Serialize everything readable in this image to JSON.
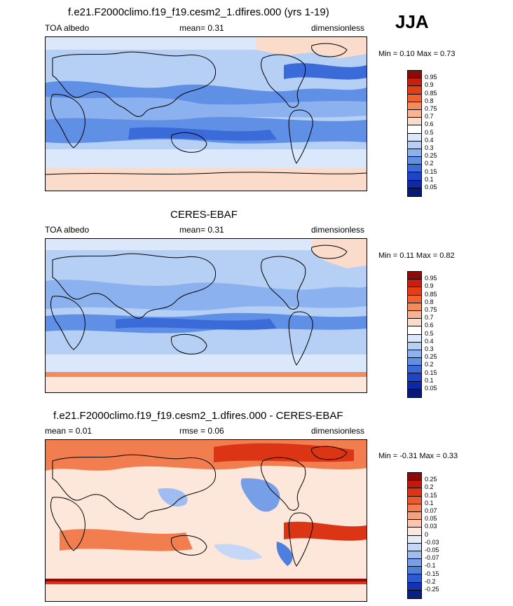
{
  "season": "JJA",
  "panels": [
    {
      "title": "f.e21.F2000climo.f19_f19.cesm2_1.dfires.000 (yrs 1-19)",
      "left_label": "TOA albedo",
      "mid_label": "mean=  0.31",
      "right_label": "dimensionless",
      "minmax": "Min =  0.10 Max =  0.73",
      "colorbar": {
        "labels": [
          "0.95",
          "0.9",
          "0.85",
          "0.8",
          "0.75",
          "0.7",
          "0.6",
          "0.5",
          "0.4",
          "0.3",
          "0.25",
          "0.2",
          "0.15",
          "0.1",
          "0.05"
        ],
        "colors": [
          "#8b0a0a",
          "#c8200e",
          "#e23f17",
          "#ee6233",
          "#f48b5c",
          "#f8b393",
          "#fbdccb",
          "#ffffff",
          "#dbe8fb",
          "#b5cff5",
          "#8bb2ee",
          "#5f90e6",
          "#3b6ad9",
          "#1f44c9",
          "#0c2aa6",
          "#071a78"
        ]
      },
      "map_style": "model"
    },
    {
      "title": "CERES-EBAF",
      "left_label": "TOA albedo",
      "mid_label": "mean=  0.31",
      "right_label": "dimensionless",
      "minmax": "Min =  0.11 Max =  0.82",
      "colorbar": {
        "labels": [
          "0.95",
          "0.9",
          "0.85",
          "0.8",
          "0.75",
          "0.7",
          "0.6",
          "0.5",
          "0.4",
          "0.3",
          "0.25",
          "0.2",
          "0.15",
          "0.1",
          "0.05"
        ],
        "colors": [
          "#8b0a0a",
          "#c8200e",
          "#e23f17",
          "#ee6233",
          "#f48b5c",
          "#f8b393",
          "#fbdccb",
          "#ffffff",
          "#dbe8fb",
          "#b5cff5",
          "#8bb2ee",
          "#5f90e6",
          "#3b6ad9",
          "#1f44c9",
          "#0c2aa6",
          "#071a78"
        ]
      },
      "map_style": "obs"
    },
    {
      "title": "f.e21.F2000climo.f19_f19.cesm2_1.dfires.000 - CERES-EBAF",
      "left_label": "mean =   0.01",
      "mid_label": "rmse =  0.06",
      "right_label": "dimensionless",
      "minmax": "Min =  -0.31 Max =   0.33",
      "colorbar": {
        "labels": [
          "0.25",
          "0.2",
          "0.15",
          "0.1",
          "0.07",
          "0.05",
          "0.03",
          "0",
          "-0.03",
          "-0.05",
          "-0.07",
          "-0.1",
          "-0.15",
          "-0.2",
          "-0.25"
        ],
        "colors": [
          "#8b0a0a",
          "#c11a0c",
          "#dc3516",
          "#ea5a2c",
          "#f27e50",
          "#f7a07a",
          "#fbc6ad",
          "#fde6da",
          "#e3ecfb",
          "#c4d7f6",
          "#9fbdf0",
          "#779fe8",
          "#4f7fdd",
          "#2e5ad0",
          "#1433b3",
          "#0a1f80"
        ]
      },
      "map_style": "diff"
    }
  ]
}
